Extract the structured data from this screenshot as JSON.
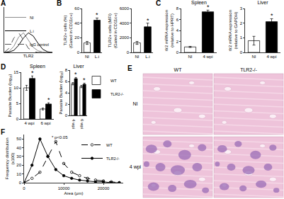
{
  "panel_labels": [
    "A",
    "B",
    "C",
    "D",
    "E",
    "F"
  ],
  "chart_data": [
    {
      "type": "line",
      "x_label": "TLR2",
      "tick_labels": false,
      "legend": "upper right",
      "xlim": [
        0,
        100
      ],
      "ylim": [
        0,
        220
      ],
      "x": [
        0,
        10,
        20,
        30,
        40,
        50,
        60,
        70,
        80,
        90,
        100
      ],
      "series": [
        {
          "name": "NI",
          "color": "#8c8c8c",
          "line_style": "solid",
          "values": [
            0,
            5,
            30,
            75,
            95,
            60,
            25,
            8,
            2,
            0,
            0
          ]
        },
        {
          "name": "L.i",
          "color": "#000000",
          "line_style": "solid",
          "values": [
            0,
            2,
            10,
            35,
            70,
            95,
            80,
            45,
            15,
            3,
            0
          ]
        },
        {
          "name": "IgG control",
          "color": "#555555",
          "line_style": "dash",
          "values": [
            0,
            20,
            70,
            95,
            60,
            20,
            5,
            0,
            0,
            0,
            0
          ]
        }
      ]
    },
    {
      "type": "bar",
      "y_label": [
        "TLR2+ cells (%)",
        "(Gated in CD11c+)"
      ],
      "categories": [
        "NI",
        "L.i"
      ],
      "values": [
        13,
        44
      ],
      "errors": [
        2,
        3
      ],
      "colors": [
        "#ffffff",
        "#000000"
      ],
      "ylim": [
        0,
        60
      ],
      "yticks": [
        0,
        20,
        40,
        60
      ],
      "annotations": [
        {
          "x": "L.i",
          "text": "*"
        }
      ]
    },
    {
      "type": "bar",
      "y_label": [
        "TLR2+ cells (MFI)",
        "(Gated in CD11c+)"
      ],
      "categories": [
        "NI",
        "L.i"
      ],
      "values": [
        1300,
        3500
      ],
      "errors": [
        200,
        500
      ],
      "colors": [
        "#ffffff",
        "#000000"
      ],
      "ylim": [
        0,
        6000
      ],
      "yticks": [
        0,
        2000,
        4000,
        6000
      ],
      "annotations": [
        {
          "x": "L.i",
          "text": "*"
        }
      ]
    },
    {
      "type": "bar",
      "title": "Spleen",
      "y_label": [
        "tlr2 mRNA expression",
        "(relative to HPRT)"
      ],
      "categories": [
        "NI",
        "4 wpi"
      ],
      "values": [
        1,
        7.4
      ],
      "errors": [
        0.1,
        0.3
      ],
      "colors": [
        "#ffffff",
        "#000000"
      ],
      "ylim": [
        0,
        8
      ],
      "yticks": [
        0,
        2,
        4,
        6,
        8
      ],
      "annotations": [
        {
          "x": "4 wpi",
          "text": "*"
        }
      ]
    },
    {
      "type": "bar",
      "title": "Liver",
      "y_label": [
        "tlr2 mRNA expression",
        "(relative to GAPDH)"
      ],
      "categories": [
        "NI",
        "4 wpi"
      ],
      "values": [
        0.8,
        2.1
      ],
      "errors": [
        0.3,
        0.2
      ],
      "colors": [
        "#ffffff",
        "#000000"
      ],
      "ylim": [
        0,
        3
      ],
      "yticks": [
        0,
        1,
        2,
        3
      ],
      "annotations": [
        {
          "x": "4 wpi",
          "text": "*"
        }
      ]
    },
    {
      "type": "bar",
      "title": "Spleen",
      "y_label": [
        "Parasite Burden (log₁₀)"
      ],
      "categories": [
        "4 wpi",
        "6 wpi"
      ],
      "series": [
        {
          "name": "WT",
          "color": "#ffffff",
          "values": [
            10,
            3.2
          ],
          "errors": [
            0.8,
            0.3
          ]
        },
        {
          "name": "TLR2-/-",
          "color": "#000000",
          "values": [
            13,
            4.8
          ],
          "errors": [
            0.8,
            0.4
          ]
        }
      ],
      "ylim": [
        0,
        15
      ],
      "yticks": [
        0,
        5,
        10,
        15
      ],
      "annotations": [
        {
          "x": "4 wpi",
          "text": "*"
        },
        {
          "x": "6 wpi",
          "text": "*"
        }
      ]
    },
    {
      "type": "bar",
      "title": "Liver",
      "y_label": [
        "Parasite Burden (log₁₀)"
      ],
      "legend": "right",
      "categories": [
        "4 wpi",
        "6 wpi"
      ],
      "series": [
        {
          "name": "WT",
          "color": "#ffffff",
          "values": [
            5.6,
            5.1
          ],
          "errors": [
            0.2,
            0.2
          ]
        },
        {
          "name": "TLR2-/-",
          "color": "#000000",
          "values": [
            6.5,
            5.5
          ],
          "errors": [
            0.2,
            0.2
          ]
        }
      ],
      "ylim": [
        0,
        8
      ],
      "yticks": [
        0,
        2,
        4,
        6,
        8
      ],
      "annotations": [
        {
          "x": "4 wpi",
          "text": "*"
        },
        {
          "x": "6 wpi",
          "text": "*"
        }
      ]
    },
    {
      "type": "line",
      "x_label": "Area (μm)",
      "y_label": [
        "Frequency distribution",
        "(x100)"
      ],
      "legend": "upper right",
      "x": [
        0,
        2000,
        4000,
        6000,
        8000,
        10000,
        12000,
        14000,
        16000,
        18000,
        20000,
        22000,
        24000
      ],
      "xlim": [
        0,
        25000
      ],
      "xticks": [
        0,
        10000,
        20000
      ],
      "ylim": [
        0,
        55
      ],
      "yticks": [
        0,
        10,
        20,
        30,
        40,
        50
      ],
      "series": [
        {
          "name": "WT",
          "color": "#000000",
          "marker": "circle-open",
          "line_style": "dash",
          "values": [
            0,
            5,
            12,
            30,
            47,
            22,
            12,
            8,
            5,
            3,
            2,
            1,
            0
          ]
        },
        {
          "name": "TLR2-/-",
          "color": "#000000",
          "marker": "circle",
          "line_style": "solid",
          "values": [
            0,
            20,
            50,
            30,
            15,
            8,
            5,
            3,
            2,
            1,
            1,
            0,
            0
          ]
        }
      ],
      "annotations": [
        {
          "text": "* p<0.05",
          "x": 9000,
          "y": 52
        }
      ]
    }
  ],
  "panel_E": {
    "columns": [
      "WT",
      "TLR2-/-"
    ],
    "rows": [
      "NI",
      "4 wpi"
    ]
  }
}
